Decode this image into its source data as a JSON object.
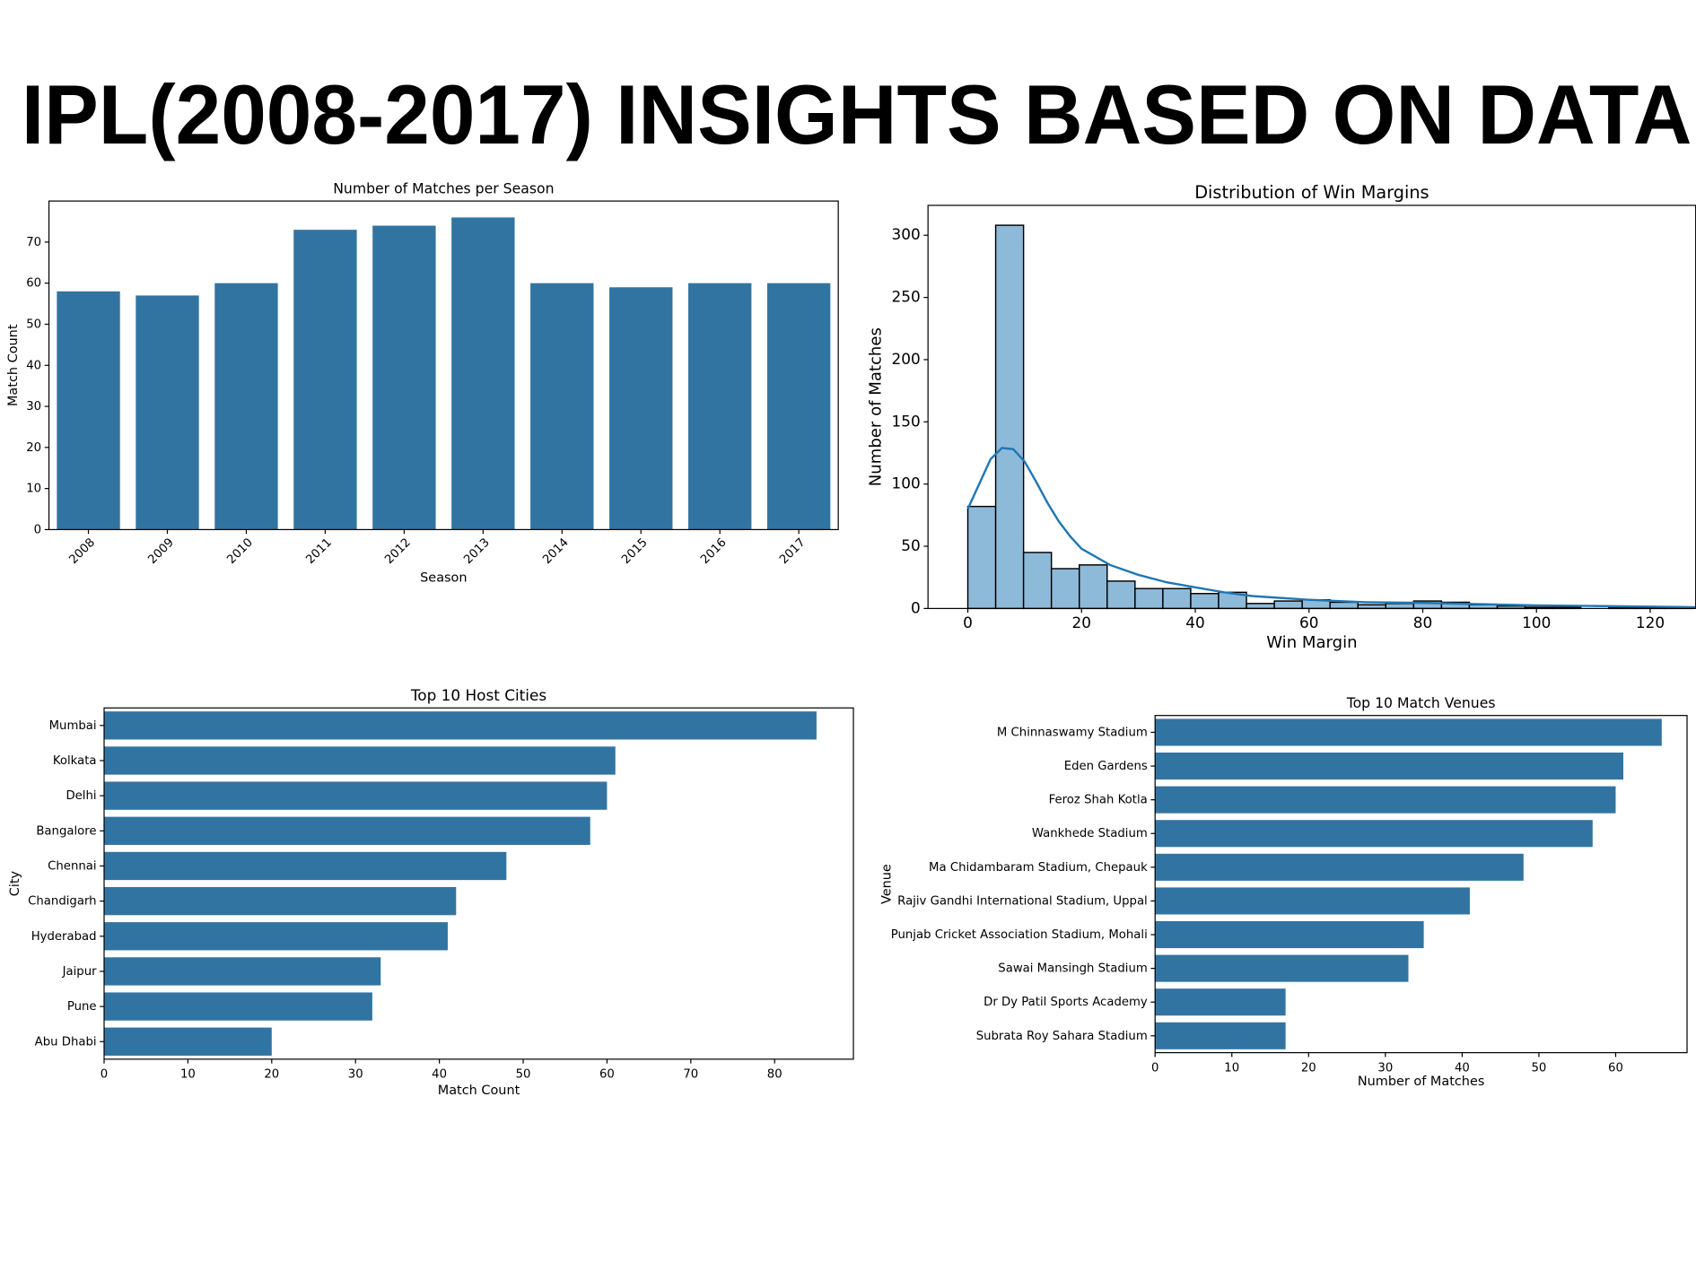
{
  "title": "IPL(2008-2017) INSIGHTS BASED ON DATA",
  "chart_data": [
    {
      "type": "bar",
      "title": "Number of Matches per Season",
      "x_label": "Season",
      "y_label": "Match Count",
      "color": "#3274a1",
      "categories": [
        "2008",
        "2009",
        "2010",
        "2011",
        "2012",
        "2013",
        "2014",
        "2015",
        "2016",
        "2017"
      ],
      "values": [
        58,
        57,
        60,
        73,
        74,
        76,
        60,
        59,
        60,
        60
      ],
      "ylim": [
        0,
        80
      ],
      "yticks": [
        0,
        10,
        20,
        30,
        40,
        50,
        60,
        70
      ]
    },
    {
      "type": "histogram",
      "title": "Distribution of Win Margins",
      "x_label": "Win Margin",
      "y_label": "Number of Matches",
      "color": "#8ebad9",
      "bins": [
        0,
        4.9,
        9.8,
        14.7,
        19.6,
        24.5,
        29.4,
        34.3,
        39.2,
        44.1,
        49,
        53.9,
        58.8,
        63.7,
        68.6,
        73.5,
        78.4,
        83.3,
        88.2,
        93.1,
        98,
        102.9,
        107.8,
        112.7,
        117.6,
        122.5,
        127.4
      ],
      "values": [
        82,
        308,
        45,
        32,
        35,
        22,
        16,
        16,
        12,
        13,
        4,
        6,
        7,
        5,
        3,
        4,
        6,
        5,
        3,
        2,
        1,
        1,
        0,
        1,
        1,
        1
      ],
      "kde": {
        "color": "#1f77b4",
        "x": [
          0,
          2,
          4,
          6,
          8,
          10,
          12,
          14,
          16,
          18,
          20,
          25,
          30,
          35,
          40,
          45,
          50,
          60,
          70,
          80,
          90,
          100,
          110,
          120,
          128
        ],
        "y": [
          80,
          100,
          120,
          129,
          128,
          118,
          102,
          85,
          70,
          58,
          48,
          35,
          27,
          21,
          17,
          13,
          10,
          7,
          5,
          4.5,
          3.5,
          2.5,
          2,
          1.5,
          1
        ]
      },
      "xlim": [
        -7,
        128
      ],
      "xticks": [
        0,
        20,
        40,
        60,
        80,
        100,
        120
      ],
      "ylim": [
        0,
        324
      ],
      "yticks": [
        0,
        50,
        100,
        150,
        200,
        250,
        300
      ]
    },
    {
      "type": "barh",
      "title": "Top 10 Host Cities",
      "x_label": "Match Count",
      "y_label": "City",
      "color": "#3274a1",
      "categories": [
        "Mumbai",
        "Kolkata",
        "Delhi",
        "Bangalore",
        "Chennai",
        "Chandigarh",
        "Hyderabad",
        "Jaipur",
        "Pune",
        "Abu Dhabi"
      ],
      "values": [
        85,
        61,
        60,
        58,
        48,
        42,
        41,
        33,
        32,
        20
      ],
      "xlim": [
        0,
        89.4
      ],
      "xticks": [
        0,
        10,
        20,
        30,
        40,
        50,
        60,
        70,
        80
      ]
    },
    {
      "type": "barh",
      "title": "Top 10 Match Venues",
      "x_label": "Number of Matches",
      "y_label": "Venue",
      "color": "#3274a1",
      "categories": [
        "M Chinnaswamy Stadium",
        "Eden Gardens",
        "Feroz Shah Kotla",
        "Wankhede Stadium",
        "Ma Chidambaram Stadium, Chepauk",
        "Rajiv Gandhi International Stadium, Uppal",
        "Punjab Cricket Association Stadium, Mohali",
        "Sawai Mansingh Stadium",
        "Dr Dy Patil Sports Academy",
        "Subrata Roy Sahara Stadium"
      ],
      "values": [
        66,
        61,
        60,
        57,
        48,
        41,
        35,
        33,
        17,
        17
      ],
      "xlim": [
        0,
        69.3
      ],
      "xticks": [
        0,
        10,
        20,
        30,
        40,
        50,
        60
      ]
    }
  ]
}
